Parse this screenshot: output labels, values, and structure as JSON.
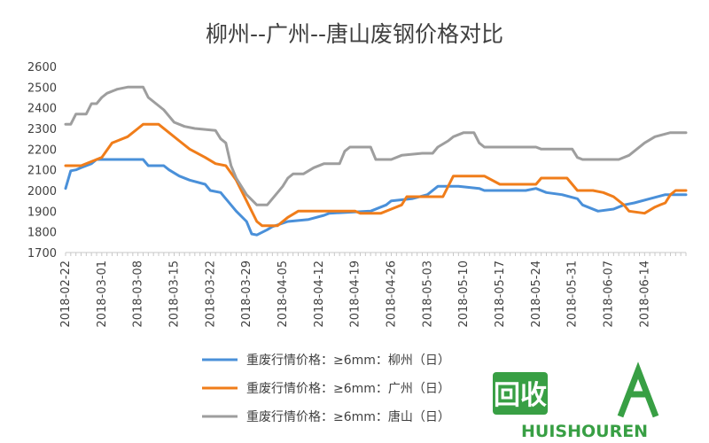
{
  "chart_data": {
    "type": "line",
    "title": "柳州--广州--唐山废钢价格对比",
    "xlabel": "",
    "ylabel": "",
    "ylim": [
      1700,
      2600
    ],
    "yticks": [
      1700,
      1800,
      1900,
      2000,
      2100,
      2200,
      2300,
      2400,
      2500,
      2600
    ],
    "xlim": [
      "2018-02-22",
      "2018-06-22"
    ],
    "xticks": [
      "2018-02-22",
      "2018-03-01",
      "2018-03-08",
      "2018-03-15",
      "2018-03-22",
      "2018-03-29",
      "2018-04-05",
      "2018-04-12",
      "2018-04-19",
      "2018-04-26",
      "2018-05-03",
      "2018-05-10",
      "2018-05-17",
      "2018-05-24",
      "2018-05-31",
      "2018-06-07",
      "2018-06-14"
    ],
    "grid": false,
    "legend_position": "bottom",
    "series": [
      {
        "name": "重废行情价格：≥6mm：柳州（日）",
        "color": "#4A90D9",
        "points": [
          [
            "2018-02-22",
            2010
          ],
          [
            "2018-02-23",
            2095
          ],
          [
            "2018-02-24",
            2100
          ],
          [
            "2018-02-25",
            2110
          ],
          [
            "2018-02-27",
            2130
          ],
          [
            "2018-02-28",
            2150
          ],
          [
            "2018-03-07",
            2150
          ],
          [
            "2018-03-09",
            2150
          ],
          [
            "2018-03-10",
            2120
          ],
          [
            "2018-03-13",
            2120
          ],
          [
            "2018-03-14",
            2100
          ],
          [
            "2018-03-16",
            2070
          ],
          [
            "2018-03-18",
            2050
          ],
          [
            "2018-03-21",
            2030
          ],
          [
            "2018-03-22",
            2000
          ],
          [
            "2018-03-24",
            1990
          ],
          [
            "2018-03-25",
            1960
          ],
          [
            "2018-03-27",
            1900
          ],
          [
            "2018-03-29",
            1850
          ],
          [
            "2018-03-30",
            1790
          ],
          [
            "2018-03-31",
            1785
          ],
          [
            "2018-04-02",
            1810
          ],
          [
            "2018-04-03",
            1825
          ],
          [
            "2018-04-06",
            1850
          ],
          [
            "2018-04-10",
            1860
          ],
          [
            "2018-04-13",
            1880
          ],
          [
            "2018-04-14",
            1890
          ],
          [
            "2018-04-22",
            1900
          ],
          [
            "2018-04-25",
            1930
          ],
          [
            "2018-04-26",
            1950
          ],
          [
            "2018-04-30",
            1960
          ],
          [
            "2018-05-03",
            1980
          ],
          [
            "2018-05-05",
            2020
          ],
          [
            "2018-05-09",
            2020
          ],
          [
            "2018-05-13",
            2010
          ],
          [
            "2018-05-14",
            2000
          ],
          [
            "2018-05-22",
            2000
          ],
          [
            "2018-05-24",
            2010
          ],
          [
            "2018-05-26",
            1990
          ],
          [
            "2018-05-29",
            1980
          ],
          [
            "2018-06-01",
            1960
          ],
          [
            "2018-06-02",
            1930
          ],
          [
            "2018-06-05",
            1900
          ],
          [
            "2018-06-08",
            1910
          ],
          [
            "2018-06-10",
            1930
          ],
          [
            "2018-06-12",
            1940
          ],
          [
            "2018-06-15",
            1960
          ],
          [
            "2018-06-18",
            1980
          ],
          [
            "2018-06-22",
            1980
          ]
        ]
      },
      {
        "name": "重废行情价格：≥6mm：广州（日）",
        "color": "#F07D1A",
        "points": [
          [
            "2018-02-22",
            2120
          ],
          [
            "2018-02-25",
            2120
          ],
          [
            "2018-02-28",
            2150
          ],
          [
            "2018-03-01",
            2160
          ],
          [
            "2018-03-03",
            2230
          ],
          [
            "2018-03-04",
            2240
          ],
          [
            "2018-03-06",
            2260
          ],
          [
            "2018-03-07",
            2280
          ],
          [
            "2018-03-08",
            2300
          ],
          [
            "2018-03-09",
            2320
          ],
          [
            "2018-03-12",
            2320
          ],
          [
            "2018-03-14",
            2280
          ],
          [
            "2018-03-16",
            2240
          ],
          [
            "2018-03-18",
            2200
          ],
          [
            "2018-03-21",
            2160
          ],
          [
            "2018-03-23",
            2130
          ],
          [
            "2018-03-25",
            2120
          ],
          [
            "2018-03-27",
            2050
          ],
          [
            "2018-03-29",
            1950
          ],
          [
            "2018-03-31",
            1850
          ],
          [
            "2018-04-01",
            1830
          ],
          [
            "2018-04-04",
            1830
          ],
          [
            "2018-04-06",
            1870
          ],
          [
            "2018-04-08",
            1900
          ],
          [
            "2018-04-16",
            1900
          ],
          [
            "2018-04-19",
            1900
          ],
          [
            "2018-04-20",
            1890
          ],
          [
            "2018-04-24",
            1890
          ],
          [
            "2018-04-26",
            1910
          ],
          [
            "2018-04-28",
            1930
          ],
          [
            "2018-04-29",
            1970
          ],
          [
            "2018-05-01",
            1970
          ],
          [
            "2018-05-06",
            1970
          ],
          [
            "2018-05-08",
            2070
          ],
          [
            "2018-05-14",
            2070
          ],
          [
            "2018-05-17",
            2030
          ],
          [
            "2018-05-24",
            2030
          ],
          [
            "2018-05-25",
            2060
          ],
          [
            "2018-05-30",
            2060
          ],
          [
            "2018-06-01",
            2000
          ],
          [
            "2018-06-04",
            2000
          ],
          [
            "2018-06-06",
            1990
          ],
          [
            "2018-06-08",
            1970
          ],
          [
            "2018-06-10",
            1930
          ],
          [
            "2018-06-11",
            1900
          ],
          [
            "2018-06-14",
            1890
          ],
          [
            "2018-06-16",
            1920
          ],
          [
            "2018-06-17",
            1930
          ],
          [
            "2018-06-18",
            1940
          ],
          [
            "2018-06-19",
            1980
          ],
          [
            "2018-06-20",
            2000
          ],
          [
            "2018-06-22",
            2000
          ]
        ]
      },
      {
        "name": "重废行情价格：≥6mm：唐山（日）",
        "color": "#9E9E9E",
        "points": [
          [
            "2018-02-22",
            2320
          ],
          [
            "2018-02-23",
            2320
          ],
          [
            "2018-02-24",
            2370
          ],
          [
            "2018-02-26",
            2370
          ],
          [
            "2018-02-27",
            2420
          ],
          [
            "2018-02-28",
            2420
          ],
          [
            "2018-03-01",
            2450
          ],
          [
            "2018-03-02",
            2470
          ],
          [
            "2018-03-04",
            2490
          ],
          [
            "2018-03-06",
            2500
          ],
          [
            "2018-03-09",
            2500
          ],
          [
            "2018-03-10",
            2450
          ],
          [
            "2018-03-13",
            2390
          ],
          [
            "2018-03-15",
            2330
          ],
          [
            "2018-03-17",
            2310
          ],
          [
            "2018-03-19",
            2300
          ],
          [
            "2018-03-23",
            2290
          ],
          [
            "2018-03-24",
            2250
          ],
          [
            "2018-03-25",
            2230
          ],
          [
            "2018-03-26",
            2120
          ],
          [
            "2018-03-27",
            2060
          ],
          [
            "2018-03-29",
            1980
          ],
          [
            "2018-03-31",
            1930
          ],
          [
            "2018-04-02",
            1930
          ],
          [
            "2018-04-04",
            1990
          ],
          [
            "2018-04-05",
            2020
          ],
          [
            "2018-04-06",
            2060
          ],
          [
            "2018-04-07",
            2080
          ],
          [
            "2018-04-09",
            2080
          ],
          [
            "2018-04-11",
            2110
          ],
          [
            "2018-04-13",
            2130
          ],
          [
            "2018-04-16",
            2130
          ],
          [
            "2018-04-17",
            2190
          ],
          [
            "2018-04-18",
            2210
          ],
          [
            "2018-04-22",
            2210
          ],
          [
            "2018-04-23",
            2150
          ],
          [
            "2018-04-26",
            2150
          ],
          [
            "2018-04-28",
            2170
          ],
          [
            "2018-05-02",
            2180
          ],
          [
            "2018-05-04",
            2180
          ],
          [
            "2018-05-05",
            2210
          ],
          [
            "2018-05-07",
            2240
          ],
          [
            "2018-05-08",
            2260
          ],
          [
            "2018-05-10",
            2280
          ],
          [
            "2018-05-12",
            2280
          ],
          [
            "2018-05-13",
            2230
          ],
          [
            "2018-05-14",
            2210
          ],
          [
            "2018-05-24",
            2210
          ],
          [
            "2018-05-25",
            2200
          ],
          [
            "2018-05-28",
            2200
          ],
          [
            "2018-05-31",
            2200
          ],
          [
            "2018-06-01",
            2160
          ],
          [
            "2018-06-02",
            2150
          ],
          [
            "2018-06-05",
            2150
          ],
          [
            "2018-06-09",
            2150
          ],
          [
            "2018-06-11",
            2170
          ],
          [
            "2018-06-14",
            2230
          ],
          [
            "2018-06-16",
            2260
          ],
          [
            "2018-06-19",
            2280
          ],
          [
            "2018-06-22",
            2280
          ]
        ]
      }
    ]
  },
  "watermark": {
    "text": "HUISHOUREN",
    "glyph_text": "回收",
    "color": "#2E9A3A"
  }
}
